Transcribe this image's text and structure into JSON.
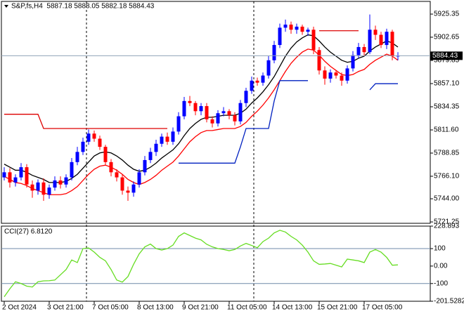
{
  "chart_data": [
    {
      "type": "candlestick",
      "title": "S&P,fs,H4  5887.18 5888.05 5882.18 5884.43",
      "categories": [
        "2 Oct 2024",
        null,
        null,
        null,
        null,
        null,
        null,
        null,
        "3 Oct 21:00",
        null,
        null,
        null,
        null,
        null,
        null,
        null,
        "7 Oct 05:00",
        null,
        null,
        null,
        null,
        null,
        null,
        null,
        "8 Oct 13:00",
        null,
        null,
        null,
        null,
        null,
        null,
        null,
        "9 Oct 21:00",
        null,
        null,
        null,
        null,
        null,
        null,
        null,
        "11 Oct 05:00",
        null,
        null,
        null,
        null,
        null,
        null,
        null,
        "14 Oct 13:00",
        null,
        null,
        null,
        null,
        null,
        null,
        null,
        "15 Oct 21:00",
        null,
        null,
        null,
        null,
        null,
        null,
        null,
        "17 Oct 05:00",
        null,
        null,
        null,
        null,
        null,
        null
      ],
      "open": [
        5765,
        5770,
        5760,
        5765,
        5775,
        5758,
        5752,
        5760,
        5748,
        5755,
        5762,
        5758,
        5765,
        5780,
        5790,
        5800,
        5808,
        5803,
        5795,
        5780,
        5770,
        5765,
        5752,
        5750,
        5758,
        5770,
        5782,
        5790,
        5798,
        5805,
        5800,
        5810,
        5825,
        5840,
        5838,
        5830,
        5835,
        5822,
        5818,
        5828,
        5830,
        5826,
        5820,
        5838,
        5850,
        5860,
        5858,
        5865,
        5880,
        5895,
        5912,
        5915,
        5910,
        5913,
        5908,
        5910,
        5890,
        5870,
        5862,
        5868,
        5865,
        5860,
        5872,
        5885,
        5893,
        5888,
        5910,
        5905,
        5895,
        5908,
        5884
      ],
      "high": [
        5775,
        5774,
        5768,
        5779,
        5778,
        5762,
        5763,
        5764,
        5758,
        5766,
        5766,
        5768,
        5784,
        5795,
        5804,
        5812,
        5811,
        5806,
        5797,
        5783,
        5773,
        5768,
        5756,
        5761,
        5773,
        5786,
        5794,
        5802,
        5808,
        5809,
        5814,
        5829,
        5844,
        5845,
        5840,
        5838,
        5838,
        5825,
        5831,
        5834,
        5832,
        5829,
        5841,
        5853,
        5864,
        5863,
        5868,
        5884,
        5899,
        5916,
        5920,
        5918,
        5916,
        5915,
        5912,
        5913,
        5893,
        5874,
        5871,
        5870,
        5868,
        5875,
        5889,
        5897,
        5896,
        5925,
        5914,
        5908,
        5911,
        5910,
        5888
      ],
      "low": [
        5762,
        5755,
        5756,
        5762,
        5755,
        5745,
        5748,
        5742,
        5744,
        5752,
        5754,
        5755,
        5762,
        5777,
        5787,
        5797,
        5800,
        5792,
        5777,
        5766,
        5761,
        5748,
        5742,
        5746,
        5755,
        5767,
        5779,
        5786,
        5795,
        5797,
        5797,
        5807,
        5822,
        5835,
        5826,
        5826,
        5819,
        5814,
        5815,
        5825,
        5822,
        5816,
        5817,
        5834,
        5847,
        5855,
        5855,
        5862,
        5877,
        5892,
        5908,
        5906,
        5906,
        5905,
        5904,
        5886,
        5866,
        5856,
        5858,
        5862,
        5855,
        5857,
        5869,
        5882,
        5884,
        5886,
        5900,
        5892,
        5891,
        5880,
        5880
      ],
      "close": [
        5770,
        5760,
        5765,
        5775,
        5758,
        5752,
        5760,
        5748,
        5755,
        5762,
        5758,
        5765,
        5780,
        5790,
        5800,
        5808,
        5803,
        5795,
        5780,
        5770,
        5765,
        5752,
        5750,
        5758,
        5770,
        5782,
        5790,
        5798,
        5805,
        5800,
        5810,
        5825,
        5840,
        5838,
        5830,
        5835,
        5822,
        5818,
        5828,
        5830,
        5826,
        5820,
        5838,
        5850,
        5860,
        5858,
        5865,
        5880,
        5895,
        5912,
        5915,
        5910,
        5913,
        5908,
        5910,
        5890,
        5870,
        5862,
        5868,
        5865,
        5860,
        5872,
        5885,
        5893,
        5888,
        5910,
        5905,
        5895,
        5908,
        5884,
        5884.43
      ],
      "up_color": "#0000ff",
      "down_color": "#ff0000",
      "series": [
        {
          "color": "#000000",
          "values": [
            5778,
            5775,
            5772,
            5772,
            5770,
            5767,
            5765,
            5763,
            5760,
            5760,
            5760,
            5761,
            5764,
            5768,
            5774,
            5780,
            5786,
            5789,
            5790,
            5789,
            5786,
            5782,
            5777,
            5773,
            5771,
            5772,
            5775,
            5779,
            5784,
            5788,
            5792,
            5798,
            5806,
            5813,
            5818,
            5822,
            5824,
            5824,
            5825,
            5826,
            5826,
            5826,
            5828,
            5832,
            5838,
            5843,
            5849,
            5856,
            5864,
            5874,
            5884,
            5892,
            5898,
            5902,
            5905,
            5904,
            5899,
            5893,
            5888,
            5884,
            5880,
            5878,
            5879,
            5882,
            5884,
            5889,
            5893,
            5896,
            5899,
            5897,
            5893
          ]
        },
        {
          "color": "#ff0000",
          "values": [
            5766,
            5763,
            5760,
            5759,
            5757,
            5754,
            5752,
            5750,
            5748,
            5748,
            5748,
            5749,
            5752,
            5756,
            5762,
            5768,
            5773,
            5776,
            5777,
            5775,
            5772,
            5768,
            5763,
            5760,
            5758,
            5760,
            5763,
            5767,
            5772,
            5776,
            5780,
            5786,
            5793,
            5800,
            5805,
            5809,
            5811,
            5811,
            5812,
            5813,
            5813,
            5813,
            5815,
            5819,
            5825,
            5830,
            5836,
            5843,
            5851,
            5860,
            5869,
            5877,
            5883,
            5888,
            5891,
            5890,
            5885,
            5879,
            5874,
            5870,
            5866,
            5865,
            5866,
            5869,
            5871,
            5876,
            5880,
            5883,
            5886,
            5884,
            5880
          ]
        },
        {
          "color": "#dd0000",
          "values": [
            5827,
            5827,
            5827,
            5827,
            5827,
            5827,
            5827,
            5813,
            5813,
            5813,
            5813,
            5813,
            5813,
            5813,
            5813,
            5813,
            5813,
            5813,
            5813,
            5813,
            5813,
            5813,
            5813,
            5813,
            5813,
            5813,
            5813,
            5813,
            5813,
            5813,
            null,
            null,
            null,
            null,
            null,
            null,
            null,
            null,
            null,
            null,
            null,
            null,
            null,
            null,
            null,
            null,
            null,
            null,
            null,
            null,
            null,
            null,
            null,
            null,
            null,
            null,
            5909,
            5909,
            5909,
            5909,
            5909,
            5909,
            5909,
            5909,
            null,
            null,
            null,
            null,
            null,
            null,
            null
          ]
        },
        {
          "color": "#0020c0",
          "values": [
            null,
            null,
            null,
            null,
            null,
            null,
            null,
            null,
            null,
            null,
            null,
            null,
            null,
            null,
            null,
            null,
            null,
            null,
            null,
            null,
            null,
            null,
            null,
            null,
            null,
            null,
            null,
            null,
            null,
            null,
            null,
            5779,
            5779,
            5779,
            5779,
            5779,
            5779,
            5779,
            5779,
            5779,
            5779,
            5779,
            5795,
            5813,
            5813,
            5813,
            5813,
            5813,
            5840,
            5860,
            5860,
            5860,
            5860,
            5860,
            5860,
            null,
            null,
            null,
            null,
            null,
            null,
            null,
            null,
            null,
            null,
            5851,
            5857,
            5857,
            5857,
            5857,
            5857
          ]
        }
      ],
      "current_price": 5884.43,
      "ylim": [
        5719.9,
        5937.8
      ],
      "yticks": [
        5925.35,
        5902.65,
        5879.85,
        {
          "value": 5857.1,
          "label": "5857.10"
        },
        5834.35,
        {
          "value": 5811.6,
          "label": "5811.60"
        },
        5788.85,
        {
          "value": 5766.1,
          "label": "5766.10"
        },
        {
          "value": 5744,
          "label": "5744.00"
        },
        5721.25
      ]
    },
    {
      "type": "line",
      "title": "CCI(27) 6.8120",
      "color": "#66dd22",
      "values": [
        -176,
        -130,
        -90,
        -100,
        -115,
        -120,
        -90,
        -85,
        -84,
        -80,
        -50,
        -20,
        35,
        20,
        100,
        104,
        80,
        50,
        30,
        -20,
        -80,
        -92,
        -60,
        10,
        70,
        110,
        126,
        100,
        92,
        100,
        120,
        170,
        190,
        175,
        160,
        150,
        125,
        110,
        100,
        95,
        88,
        95,
        115,
        130,
        118,
        105,
        140,
        160,
        190,
        205,
        195,
        170,
        150,
        120,
        80,
        30,
        10,
        12,
        15,
        5,
        -5,
        40,
        35,
        30,
        20,
        80,
        95,
        80,
        50,
        5,
        6.812
      ],
      "levels": [
        100,
        -100
      ],
      "ylim": [
        -201.5282,
        228.893
      ],
      "yticks": [
        228.893,
        100,
        {
          "value": 0,
          "label": "0.00"
        },
        -100,
        -201.5282
      ]
    }
  ]
}
